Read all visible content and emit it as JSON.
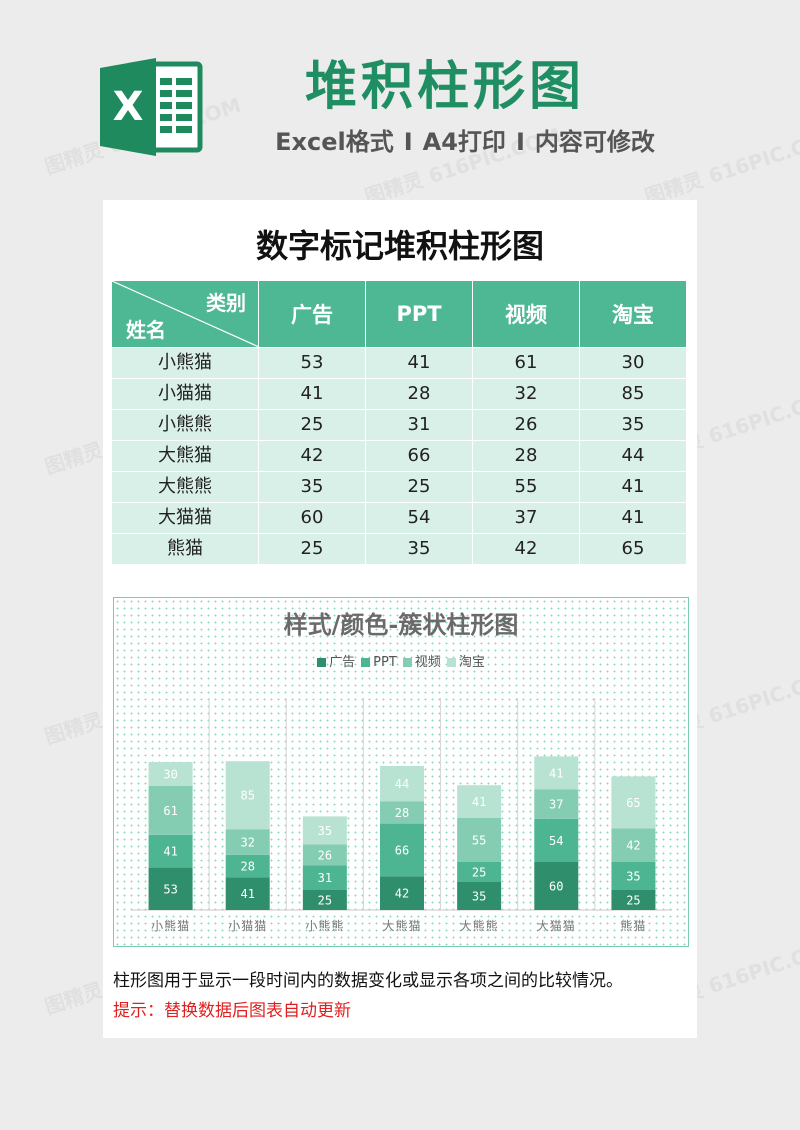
{
  "header": {
    "logo_letter": "X",
    "title": "堆积柱形图",
    "subtitle_parts": [
      "Excel格式",
      "A4打印",
      "内容可修改"
    ],
    "subtitle_sep": "I"
  },
  "watermark": "图精灵 616PIC.COM",
  "sheet": {
    "title": "数字标记堆积柱形图",
    "table": {
      "corner_category": "类别",
      "corner_name": "姓名",
      "columns": [
        "广告",
        "PPT",
        "视频",
        "淘宝"
      ],
      "rows": [
        {
          "name": "小熊猫",
          "values": [
            53,
            41,
            61,
            30
          ]
        },
        {
          "name": "小猫猫",
          "values": [
            41,
            28,
            32,
            85
          ]
        },
        {
          "name": "小熊熊",
          "values": [
            25,
            31,
            26,
            35
          ]
        },
        {
          "name": "大熊猫",
          "values": [
            42,
            66,
            28,
            44
          ]
        },
        {
          "name": "大熊熊",
          "values": [
            35,
            25,
            55,
            41
          ]
        },
        {
          "name": "大猫猫",
          "values": [
            60,
            54,
            37,
            41
          ]
        },
        {
          "name": "熊猫",
          "values": [
            25,
            35,
            42,
            65
          ]
        }
      ]
    },
    "description": "柱形图用于显示一段时间内的数据变化或显示各项之间的比较情况。",
    "tip": "提示：替换数据后图表自动更新"
  },
  "chart_data": {
    "type": "bar",
    "stacked": true,
    "title": "样式/颜色-簇状柱形图",
    "categories": [
      "小熊猫",
      "小猫猫",
      "小熊熊",
      "大熊猫",
      "大熊熊",
      "大猫猫",
      "熊猫"
    ],
    "series": [
      {
        "name": "广告",
        "values": [
          53,
          41,
          25,
          42,
          35,
          60,
          25
        ],
        "color": "#2f8f6d"
      },
      {
        "name": "PPT",
        "values": [
          41,
          28,
          31,
          66,
          25,
          54,
          35
        ],
        "color": "#4eb593"
      },
      {
        "name": "视频",
        "values": [
          61,
          32,
          26,
          28,
          55,
          37,
          42
        ],
        "color": "#84cdb2"
      },
      {
        "name": "淘宝",
        "values": [
          30,
          85,
          35,
          44,
          41,
          41,
          65
        ],
        "color": "#b8e2d2"
      }
    ],
    "ylim": [
      0,
      200
    ],
    "data_labels": true,
    "legend_position": "top",
    "grid": "vertical"
  }
}
